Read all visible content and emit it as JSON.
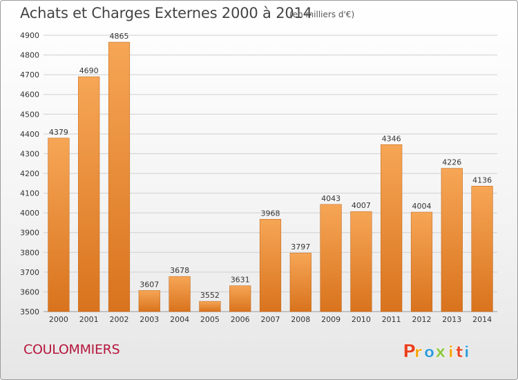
{
  "header": {
    "title": "Achats et Charges Externes 2000 à 2014",
    "subtitle": "(en milliers d'€)"
  },
  "footer": {
    "commune": "COULOMMIERS",
    "logo_text": "Proxiti"
  },
  "colors": {
    "bar_top": "#f6a656",
    "bar_bottom": "#d9731d",
    "bar_edge": "#b95f12",
    "commune": "#b5163c",
    "logo_letters": [
      "#e8411f",
      "#f5a200",
      "#2f9ad8",
      "#8cc63f",
      "#f5a200",
      "#e8411f",
      "#2f9ad8"
    ]
  },
  "chart_data": {
    "type": "bar",
    "title": "Achats et Charges Externes 2000 à 2014",
    "subtitle": "(en milliers d'€)",
    "categories": [
      "2000",
      "2001",
      "2002",
      "2003",
      "2004",
      "2005",
      "2006",
      "2007",
      "2008",
      "2009",
      "2010",
      "2011",
      "2012",
      "2013",
      "2014"
    ],
    "values": [
      4379,
      4690,
      4865,
      3607,
      3678,
      3552,
      3631,
      3968,
      3797,
      4043,
      4007,
      4346,
      4004,
      4226,
      4136
    ],
    "value_labels": [
      "4379",
      "4690",
      "4865",
      "3607",
      "3678",
      "3552",
      "3631",
      "3968",
      "3797",
      "4043",
      "4007",
      "4346",
      "4004",
      "4226",
      "4136"
    ],
    "ylim": [
      3500,
      4900
    ],
    "yticks": [
      "3500",
      "3600",
      "3700",
      "3800",
      "3900",
      "4000",
      "4100",
      "4200",
      "4300",
      "4400",
      "4500",
      "4600",
      "4700",
      "4800",
      "4900"
    ],
    "grid": true,
    "legend": "none"
  }
}
